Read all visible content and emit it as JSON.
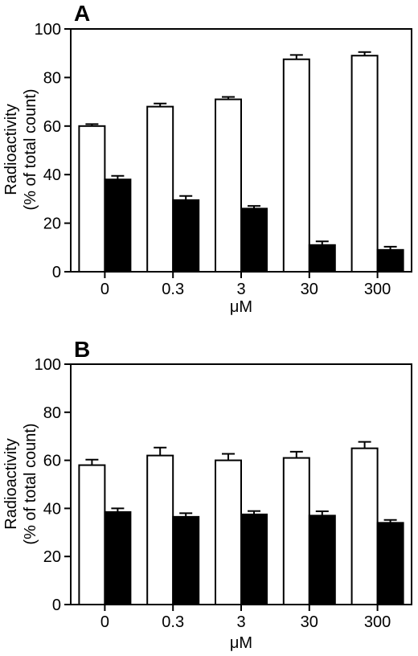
{
  "chart_data": [
    {
      "type": "bar",
      "panel": "A",
      "categories": [
        "0",
        "0.3",
        "3",
        "30",
        "300"
      ],
      "xlabel": "μM",
      "ylabel": "Radioactivity",
      "ylabel2": "(% of total count)",
      "ylim": [
        0,
        100
      ],
      "yticks": [
        "0",
        "20",
        "40",
        "60",
        "80",
        "100"
      ],
      "series": [
        {
          "fill": "#ffffff",
          "values": [
            60,
            68,
            71,
            87.5,
            89
          ],
          "errors": [
            0.8,
            1.3,
            1,
            1.8,
            1.5
          ]
        },
        {
          "fill": "#000000",
          "values": [
            38,
            29.5,
            26,
            11,
            9
          ],
          "errors": [
            1.5,
            1.7,
            1.1,
            1.5,
            1.3
          ]
        }
      ]
    },
    {
      "type": "bar",
      "panel": "B",
      "categories": [
        "0",
        "0.3",
        "3",
        "30",
        "300"
      ],
      "xlabel": "μM",
      "ylabel": "Radioactivity",
      "ylabel2": "(% of total count)",
      "ylim": [
        0,
        100
      ],
      "yticks": [
        "0",
        "20",
        "40",
        "60",
        "80",
        "100"
      ],
      "series": [
        {
          "fill": "#ffffff",
          "values": [
            58,
            62,
            60,
            61,
            65
          ],
          "errors": [
            2.3,
            3.3,
            2.7,
            2.6,
            2.7
          ]
        },
        {
          "fill": "#000000",
          "values": [
            38.5,
            36.5,
            37.5,
            37,
            34
          ],
          "errors": [
            1.5,
            1.5,
            1.4,
            1.8,
            1.2
          ]
        }
      ]
    }
  ]
}
